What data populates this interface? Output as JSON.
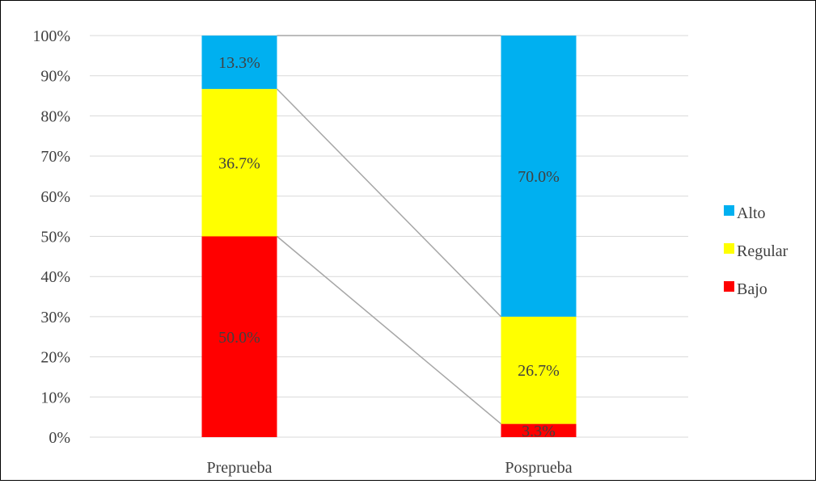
{
  "chart_data": {
    "type": "bar",
    "stacked": true,
    "percent_stacked": true,
    "categories": [
      "Preprueba",
      "Posprueba"
    ],
    "series": [
      {
        "name": "Bajo",
        "values": [
          50.0,
          3.3
        ],
        "labels": [
          "50.0%",
          "3.3%"
        ],
        "color": "#FF0000"
      },
      {
        "name": "Regular",
        "values": [
          36.7,
          26.7
        ],
        "labels": [
          "36.7%",
          "26.7%"
        ],
        "color": "#FFFF00"
      },
      {
        "name": "Alto",
        "values": [
          13.3,
          70.0
        ],
        "labels": [
          "13.3%",
          "70.0%"
        ],
        "color": "#00B0F0"
      }
    ],
    "ylim": [
      0,
      100
    ],
    "yticks": [
      "0%",
      "10%",
      "20%",
      "30%",
      "40%",
      "50%",
      "60%",
      "70%",
      "80%",
      "90%",
      "100%"
    ],
    "grid": true,
    "series_lines": true,
    "legend_position": "right",
    "legend_order": [
      "Alto",
      "Regular",
      "Bajo"
    ],
    "title": "",
    "xlabel": "",
    "ylabel": ""
  }
}
